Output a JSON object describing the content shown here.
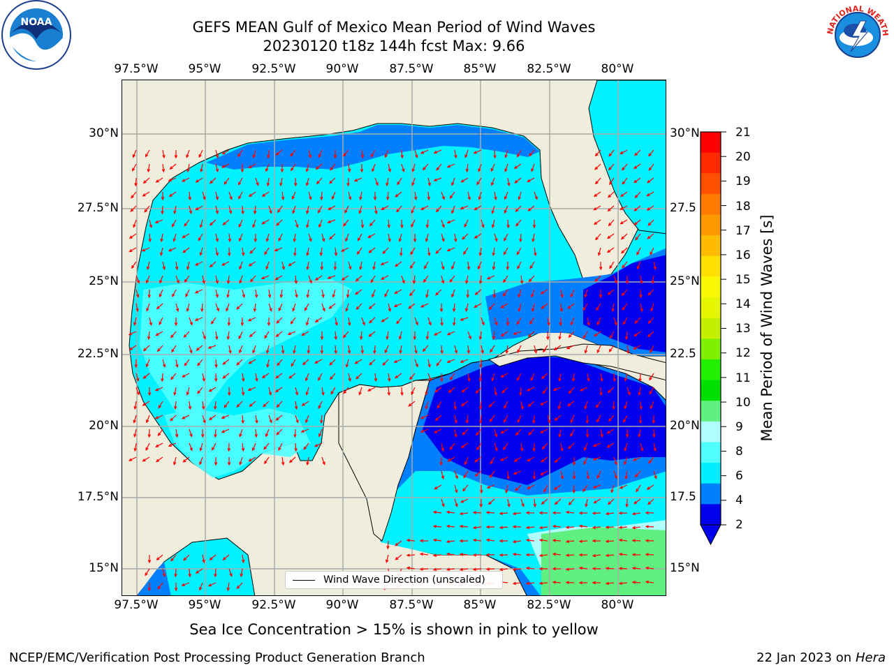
{
  "header": {
    "title_line1": "GEFS MEAN Gulf of Mexico Mean Period of Wind Waves",
    "title_line2": "20230120 t18z 144h fcst   Max: 9.66"
  },
  "axes": {
    "lon_ticks": [
      "97.5°W",
      "95°W",
      "92.5°W",
      "90°W",
      "87.5°W",
      "85°W",
      "82.5°W",
      "80°W"
    ],
    "lat_ticks_left": [
      "30°N",
      "27.5°N",
      "25°N",
      "22.5°N",
      "20°N",
      "17.5°N",
      "15°N"
    ],
    "lat_ticks_right": [
      "30°N",
      "27.5",
      "25°N",
      "22.5",
      "20°N",
      "17.5",
      "15°N"
    ]
  },
  "colorbar": {
    "title": "Mean Period of Wind Waves [s]",
    "labels": [
      "21",
      "20",
      "19",
      "18",
      "17",
      "16",
      "15",
      "14",
      "13",
      "12",
      "11",
      "10",
      "9",
      "8",
      "6",
      "4",
      "2"
    ],
    "colors": [
      "#ff0000",
      "#ff2a00",
      "#ff5000",
      "#ff7a00",
      "#ff9900",
      "#ffbb00",
      "#ffe000",
      "#f8f800",
      "#e6f500",
      "#c4f000",
      "#80f000",
      "#22f000",
      "#00e000",
      "#60f080",
      "#b0ffff",
      "#50ffff",
      "#00eeff",
      "#0080ff",
      "#0000ee"
    ]
  },
  "map": {
    "land_color": "#efeedd",
    "legend_label": "Wind Wave Direction (unscaled)",
    "arrow_color": "#ff0000"
  },
  "notes": {
    "sea_ice": "Sea Ice Concentration > 15% is shown in pink to yellow"
  },
  "footer": {
    "left": "NCEP/EMC/Verification Post Processing Product Generation Branch",
    "right_date": "22 Jan 2023 on",
    "right_machine": "Hera"
  },
  "logos": {
    "noaa_text": "NOAA",
    "nws_text": "NATIONAL WEATHER SERVICE"
  }
}
